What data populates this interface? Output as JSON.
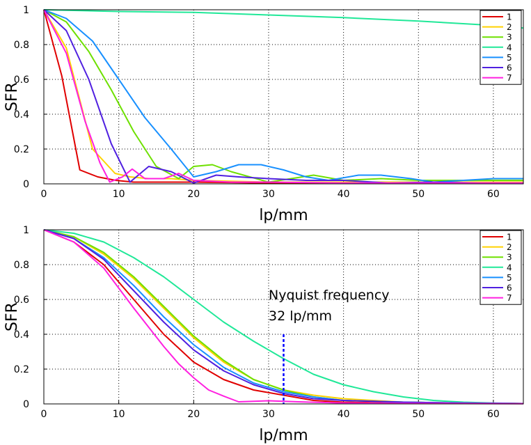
{
  "chart_data": [
    {
      "type": "line",
      "title": "",
      "xlabel": "lp/mm",
      "ylabel": "SFR",
      "xlim": [
        0,
        64
      ],
      "ylim": [
        0,
        1
      ],
      "xticks": [
        0,
        10,
        20,
        30,
        40,
        50,
        60
      ],
      "yticks": [
        0,
        0.2,
        0.4,
        0.6,
        0.8,
        1
      ],
      "grid": true,
      "legend": "top-right",
      "series": [
        {
          "name": "1",
          "color": "#e00000",
          "x": [
            0,
            2.4,
            4.8,
            7.2,
            9.6,
            12,
            16,
            20,
            30,
            40,
            50,
            60,
            64
          ],
          "y": [
            1,
            0.62,
            0.08,
            0.04,
            0.02,
            0.01,
            0.01,
            0.01,
            0.005,
            0.005,
            0.005,
            0.005,
            0.005
          ]
        },
        {
          "name": "2",
          "color": "#ffd200",
          "x": [
            0,
            3,
            6.5,
            9.5,
            11.5,
            14,
            17,
            20,
            30,
            40,
            50,
            60,
            64
          ],
          "y": [
            1,
            0.78,
            0.2,
            0.06,
            0.04,
            0.03,
            0.03,
            0.02,
            0.01,
            0.01,
            0.01,
            0.01,
            0.01
          ]
        },
        {
          "name": "3",
          "color": "#6ee000",
          "x": [
            0,
            3,
            6,
            9,
            12,
            15,
            18,
            20,
            22.5,
            25,
            30,
            36,
            40,
            45,
            50,
            60,
            64
          ],
          "y": [
            1,
            0.93,
            0.76,
            0.54,
            0.3,
            0.1,
            0.03,
            0.1,
            0.11,
            0.07,
            0.01,
            0.05,
            0.02,
            0.03,
            0.02,
            0.02,
            0.02
          ]
        },
        {
          "name": "4",
          "color": "#20e898",
          "x": [
            0,
            10,
            20,
            30,
            40,
            50,
            60,
            64
          ],
          "y": [
            1,
            0.99,
            0.985,
            0.97,
            0.955,
            0.935,
            0.91,
            0.895
          ]
        },
        {
          "name": "5",
          "color": "#1890ff",
          "x": [
            0,
            3,
            6.5,
            10,
            13.5,
            17,
            20,
            23,
            26,
            29,
            32,
            35,
            38,
            42,
            45,
            49,
            52,
            56,
            60,
            64
          ],
          "y": [
            1,
            0.95,
            0.82,
            0.6,
            0.38,
            0.2,
            0.04,
            0.07,
            0.11,
            0.11,
            0.08,
            0.04,
            0.02,
            0.05,
            0.05,
            0.03,
            0.01,
            0.02,
            0.03,
            0.03
          ]
        },
        {
          "name": "6",
          "color": "#5020e0",
          "x": [
            0,
            3,
            6,
            9,
            11.5,
            14,
            17,
            20,
            23,
            26,
            30,
            35,
            40,
            46,
            52,
            58,
            64
          ],
          "y": [
            1,
            0.88,
            0.6,
            0.23,
            0.01,
            0.1,
            0.07,
            0.005,
            0.05,
            0.04,
            0.03,
            0.02,
            0.02,
            0.005,
            0.01,
            0.005,
            0.005
          ]
        },
        {
          "name": "7",
          "color": "#ff20e0",
          "x": [
            0,
            3,
            5.5,
            7.5,
            8.8,
            10.5,
            11.8,
            13.5,
            16,
            18,
            20,
            25,
            30,
            40,
            50,
            60,
            64
          ],
          "y": [
            1,
            0.75,
            0.36,
            0.12,
            0.01,
            0.04,
            0.085,
            0.03,
            0.03,
            0.06,
            0.02,
            0.01,
            0.01,
            0.005,
            0.005,
            0.005,
            0.005
          ]
        }
      ]
    },
    {
      "type": "line",
      "title": "",
      "xlabel": "lp/mm",
      "ylabel": "SFR",
      "xlim": [
        0,
        64
      ],
      "ylim": [
        0,
        1
      ],
      "xticks": [
        0,
        10,
        20,
        30,
        40,
        50,
        60
      ],
      "yticks": [
        0,
        0.2,
        0.4,
        0.6,
        0.8,
        1
      ],
      "grid": true,
      "legend": "top-right",
      "annotation": {
        "line1": "Nyquist frequency",
        "line2": "32 lp/mm",
        "x": 32,
        "y_from": 0,
        "y_to": 0.4
      },
      "series": [
        {
          "name": "1",
          "color": "#e00000",
          "x": [
            0,
            4,
            8,
            12,
            16,
            20,
            24,
            28,
            32,
            36,
            40,
            48,
            56,
            64
          ],
          "y": [
            1,
            0.93,
            0.8,
            0.6,
            0.4,
            0.24,
            0.14,
            0.08,
            0.05,
            0.02,
            0.01,
            0.005,
            0.005,
            0.002
          ]
        },
        {
          "name": "2",
          "color": "#ffd200",
          "x": [
            0,
            4,
            8,
            12,
            16,
            20,
            24,
            28,
            32,
            36,
            40,
            48,
            56,
            64
          ],
          "y": [
            1,
            0.96,
            0.86,
            0.72,
            0.55,
            0.38,
            0.24,
            0.14,
            0.08,
            0.05,
            0.03,
            0.01,
            0.005,
            0.002
          ]
        },
        {
          "name": "3",
          "color": "#6ee000",
          "x": [
            0,
            4,
            8,
            12,
            16,
            20,
            24,
            28,
            32,
            36,
            40,
            48,
            56,
            64
          ],
          "y": [
            1,
            0.96,
            0.87,
            0.73,
            0.56,
            0.39,
            0.25,
            0.14,
            0.08,
            0.04,
            0.02,
            0.01,
            0.005,
            0.002
          ]
        },
        {
          "name": "4",
          "color": "#20e898",
          "x": [
            0,
            4,
            8,
            12,
            16,
            20,
            24,
            28,
            32,
            36,
            40,
            44,
            48,
            52,
            56,
            60,
            64
          ],
          "y": [
            1,
            0.98,
            0.93,
            0.84,
            0.73,
            0.6,
            0.47,
            0.36,
            0.26,
            0.17,
            0.11,
            0.07,
            0.04,
            0.02,
            0.01,
            0.005,
            0.002
          ]
        },
        {
          "name": "5",
          "color": "#1890ff",
          "x": [
            0,
            4,
            8,
            12,
            16,
            20,
            24,
            28,
            32,
            36,
            40,
            48,
            56,
            64
          ],
          "y": [
            1,
            0.95,
            0.84,
            0.68,
            0.5,
            0.34,
            0.21,
            0.12,
            0.07,
            0.04,
            0.02,
            0.01,
            0.005,
            0.002
          ]
        },
        {
          "name": "6",
          "color": "#5020e0",
          "x": [
            0,
            4,
            8,
            12,
            16,
            20,
            24,
            28,
            32,
            36,
            40,
            48,
            56,
            64
          ],
          "y": [
            1,
            0.95,
            0.83,
            0.65,
            0.47,
            0.31,
            0.19,
            0.11,
            0.06,
            0.03,
            0.02,
            0.01,
            0.005,
            0.002
          ]
        },
        {
          "name": "7",
          "color": "#ff20e0",
          "x": [
            0,
            4,
            8,
            12,
            16,
            18,
            20,
            22,
            24,
            26,
            30,
            34,
            40,
            48,
            56,
            64
          ],
          "y": [
            1,
            0.93,
            0.78,
            0.55,
            0.33,
            0.23,
            0.15,
            0.08,
            0.045,
            0.012,
            0.018,
            0.012,
            0.005,
            0.003,
            0.002,
            0.001
          ]
        }
      ]
    }
  ]
}
